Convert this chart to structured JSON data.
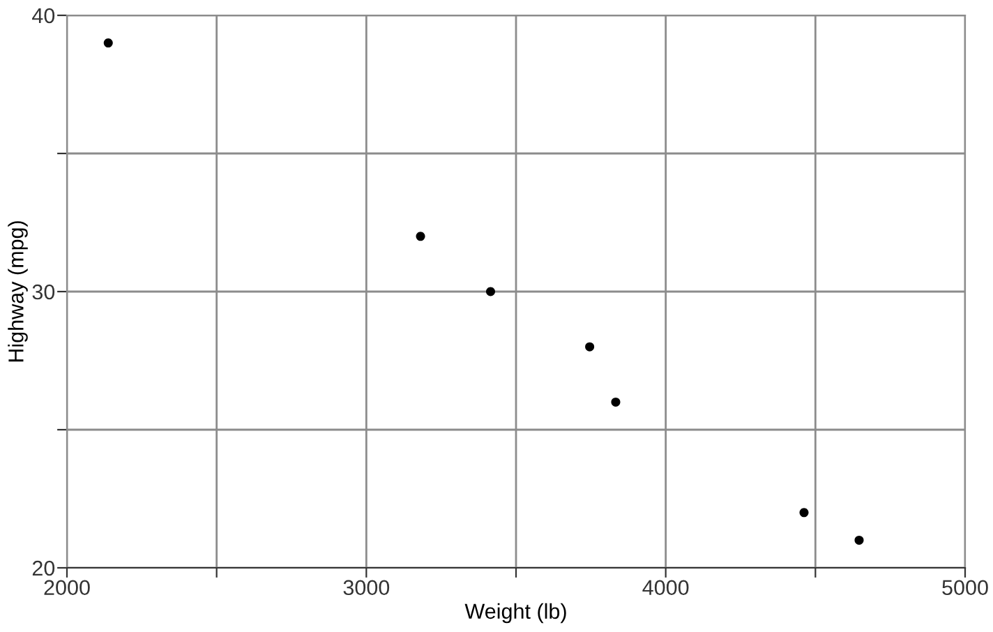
{
  "chart_data": {
    "type": "scatter",
    "xlabel": "Weight (lb)",
    "ylabel": "Highway (mpg)",
    "x": [
      2138,
      3181,
      3415,
      3746,
      3833,
      4462,
      4646
    ],
    "values": [
      39,
      32,
      30,
      28,
      26,
      22,
      21
    ],
    "color": "#000000",
    "marker": "circle",
    "xlim": [
      2000,
      5000
    ],
    "ylim": [
      20,
      40
    ],
    "xticks": [
      2000,
      {
        "value": 2500,
        "label": null
      },
      3000,
      {
        "value": 3500,
        "label": null
      },
      4000,
      {
        "value": 4500,
        "label": null
      },
      5000
    ],
    "yticks": [
      20,
      {
        "value": 25,
        "label": null
      },
      30,
      {
        "value": 35,
        "label": null
      },
      40
    ],
    "grid": true
  }
}
